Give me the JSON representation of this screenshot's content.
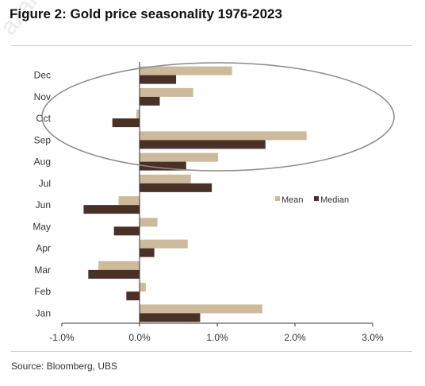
{
  "figure": {
    "title": "Figure 2: Gold price seasonality 1976-2023",
    "source": "Source: Bloomberg, UBS",
    "watermark": "azard.com"
  },
  "chart_data": {
    "type": "bar",
    "orientation": "horizontal",
    "title": "Figure 2: Gold price seasonality 1976-2023",
    "categories": [
      "Jan",
      "Feb",
      "Mar",
      "Apr",
      "May",
      "Jun",
      "Jul",
      "Aug",
      "Sep",
      "Oct",
      "Nov",
      "Dec"
    ],
    "series": [
      {
        "name": "Mean",
        "color": "#cdb99b",
        "values": [
          1.58,
          0.08,
          -0.53,
          0.62,
          0.23,
          -0.27,
          0.66,
          1.01,
          2.15,
          -0.04,
          0.69,
          1.19
        ]
      },
      {
        "name": "Median",
        "color": "#4a3127",
        "values": [
          0.78,
          -0.17,
          -0.66,
          0.19,
          -0.33,
          -0.72,
          0.93,
          0.6,
          1.62,
          -0.35,
          0.26,
          0.47
        ]
      }
    ],
    "x_ticks": [
      "-1.0%",
      "0.0%",
      "1.0%",
      "2.0%",
      "3.0%"
    ],
    "xlim": [
      -1.0,
      3.0
    ],
    "legend_position": "right-middle",
    "grid": false,
    "annotation": "ellipse highlighting Sep-Dec"
  }
}
